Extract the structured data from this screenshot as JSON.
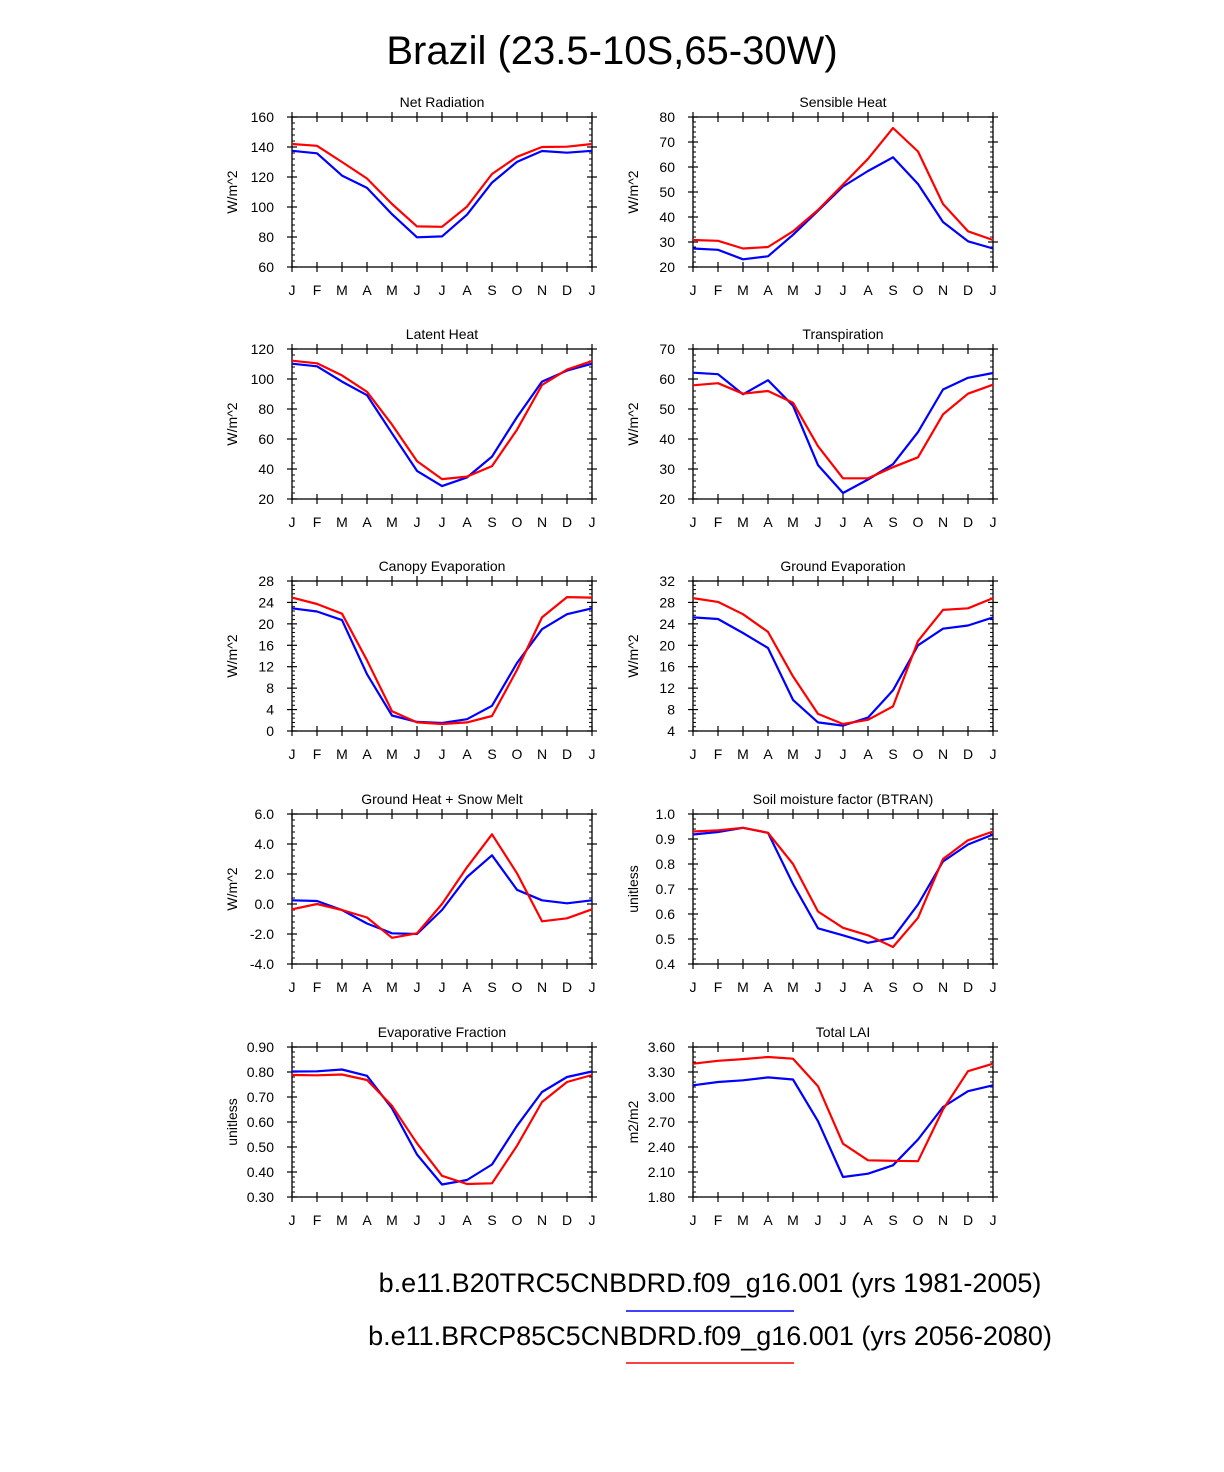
{
  "figure": {
    "title": "Brazil (23.5-10S,65-30W)",
    "colors": {
      "series1": "#0000ff",
      "series2": "#ff0000",
      "axis": "#000000"
    }
  },
  "legend": {
    "entries": [
      {
        "label": "b.e11.B20TRC5CNBDRD.f09_g16.001 (yrs 1981-2005)",
        "color": "#0000ff"
      },
      {
        "label": "b.e11.BRCP85C5CNBDRD.f09_g16.001 (yrs 2056-2080)",
        "color": "#ff0000"
      }
    ]
  },
  "chart_data": [
    {
      "type": "line",
      "title": "Net Radiation",
      "ylabel": "W/m^2",
      "xlabel": "",
      "categories": [
        "J",
        "F",
        "M",
        "A",
        "M",
        "J",
        "J",
        "A",
        "S",
        "O",
        "N",
        "D",
        "J"
      ],
      "ylim": [
        60,
        160
      ],
      "yticks": [
        "60",
        "80",
        "100",
        "120",
        "140",
        "160"
      ],
      "series": [
        {
          "name": "b.e11.B20TRC5CNBDRD.f09_g16.001 (yrs 1981-2005)",
          "color": "#0000ff",
          "values": [
            137.5,
            135.8,
            120.9,
            112.7,
            95.2,
            79.8,
            80.4,
            94.9,
            116.3,
            130.1,
            137.3,
            136.2,
            137.5
          ]
        },
        {
          "name": "b.e11.BRCP85C5CNBDRD.f09_g16.001 (yrs 2056-2080)",
          "color": "#ff0000",
          "values": [
            142.0,
            140.8,
            130.0,
            119.0,
            102.0,
            87.1,
            86.8,
            100.3,
            122.0,
            133.5,
            140.0,
            140.2,
            142.0
          ]
        }
      ]
    },
    {
      "type": "line",
      "title": "Sensible Heat",
      "ylabel": "W/m^2",
      "xlabel": "",
      "categories": [
        "J",
        "F",
        "M",
        "A",
        "M",
        "J",
        "J",
        "A",
        "S",
        "O",
        "N",
        "D",
        "J"
      ],
      "ylim": [
        20,
        80
      ],
      "yticks": [
        "20",
        "30",
        "40",
        "50",
        "60",
        "70",
        "80"
      ],
      "series": [
        {
          "name": "b.e11.B20TRC5CNBDRD.f09_g16.001 (yrs 1981-2005)",
          "color": "#0000ff",
          "values": [
            27.4,
            26.9,
            23.1,
            24.3,
            32.9,
            42.5,
            52.2,
            58.4,
            63.9,
            53.2,
            38.0,
            30.3,
            27.4
          ]
        },
        {
          "name": "b.e11.BRCP85C5CNBDRD.f09_g16.001 (yrs 2056-2080)",
          "color": "#ff0000",
          "values": [
            30.8,
            30.5,
            27.4,
            28.0,
            34.3,
            42.8,
            53.0,
            63.3,
            75.6,
            66.2,
            45.2,
            34.3,
            30.8
          ]
        }
      ]
    },
    {
      "type": "line",
      "title": "Latent Heat",
      "ylabel": "W/m^2",
      "xlabel": "",
      "categories": [
        "J",
        "F",
        "M",
        "A",
        "M",
        "J",
        "J",
        "A",
        "S",
        "O",
        "N",
        "D",
        "J"
      ],
      "ylim": [
        20,
        120
      ],
      "yticks": [
        "20",
        "40",
        "60",
        "80",
        "100",
        "120"
      ],
      "series": [
        {
          "name": "b.e11.B20TRC5CNBDRD.f09_g16.001 (yrs 1981-2005)",
          "color": "#0000ff",
          "values": [
            110.2,
            108.5,
            98.3,
            89.2,
            63.8,
            38.7,
            28.6,
            34.4,
            48.3,
            74.6,
            98.3,
            105.6,
            110.2
          ]
        },
        {
          "name": "b.e11.BRCP85C5CNBDRD.f09_g16.001 (yrs 2056-2080)",
          "color": "#ff0000",
          "values": [
            112.2,
            110.5,
            102.4,
            91.5,
            69.6,
            45.3,
            33.3,
            34.9,
            41.9,
            66.2,
            96.0,
            106.3,
            112.0
          ]
        }
      ]
    },
    {
      "type": "line",
      "title": "Transpiration",
      "ylabel": "W/m^2",
      "xlabel": "",
      "categories": [
        "J",
        "F",
        "M",
        "A",
        "M",
        "J",
        "J",
        "A",
        "S",
        "O",
        "N",
        "D",
        "J"
      ],
      "ylim": [
        20,
        70
      ],
      "yticks": [
        "20",
        "30",
        "40",
        "50",
        "60",
        "70"
      ],
      "series": [
        {
          "name": "b.e11.B20TRC5CNBDRD.f09_g16.001 (yrs 1981-2005)",
          "color": "#0000ff",
          "values": [
            62.1,
            61.6,
            54.9,
            59.6,
            51.1,
            31.3,
            22.0,
            26.5,
            31.6,
            42.3,
            56.5,
            60.4,
            62.0
          ]
        },
        {
          "name": "b.e11.BRCP85C5CNBDRD.f09_g16.001 (yrs 2056-2080)",
          "color": "#ff0000",
          "values": [
            57.9,
            58.6,
            55.1,
            56.0,
            52.1,
            37.6,
            26.9,
            26.9,
            30.6,
            33.9,
            48.2,
            55.1,
            58.1
          ]
        }
      ]
    },
    {
      "type": "line",
      "title": "Canopy Evaporation",
      "ylabel": "W/m^2",
      "xlabel": "",
      "categories": [
        "J",
        "F",
        "M",
        "A",
        "M",
        "J",
        "J",
        "A",
        "S",
        "O",
        "N",
        "D",
        "J"
      ],
      "ylim": [
        0,
        28
      ],
      "yticks": [
        "0",
        "4",
        "8",
        "12",
        "16",
        "20",
        "24",
        "28"
      ],
      "series": [
        {
          "name": "b.e11.B20TRC5CNBDRD.f09_g16.001 (yrs 1981-2005)",
          "color": "#0000ff",
          "values": [
            22.9,
            22.3,
            20.7,
            10.6,
            2.9,
            1.7,
            1.5,
            2.2,
            4.7,
            12.7,
            19.0,
            21.8,
            22.9
          ]
        },
        {
          "name": "b.e11.BRCP85C5CNBDRD.f09_g16.001 (yrs 2056-2080)",
          "color": "#ff0000",
          "values": [
            24.9,
            23.7,
            21.9,
            13.2,
            3.7,
            1.6,
            1.3,
            1.6,
            2.8,
            11.4,
            21.2,
            25.0,
            24.9
          ]
        }
      ]
    },
    {
      "type": "line",
      "title": "Ground Evaporation",
      "ylabel": "W/m^2",
      "xlabel": "",
      "categories": [
        "J",
        "F",
        "M",
        "A",
        "M",
        "J",
        "J",
        "A",
        "S",
        "O",
        "N",
        "D",
        "J"
      ],
      "ylim": [
        4,
        32
      ],
      "yticks": [
        "4",
        "8",
        "12",
        "16",
        "20",
        "24",
        "28",
        "32"
      ],
      "series": [
        {
          "name": "b.e11.B20TRC5CNBDRD.f09_g16.001 (yrs 1981-2005)",
          "color": "#0000ff",
          "values": [
            25.2,
            24.9,
            22.3,
            19.5,
            9.8,
            5.6,
            5.0,
            6.5,
            11.6,
            20.0,
            23.1,
            23.7,
            25.2
          ]
        },
        {
          "name": "b.e11.BRCP85C5CNBDRD.f09_g16.001 (yrs 2056-2080)",
          "color": "#ff0000",
          "values": [
            28.8,
            28.1,
            25.8,
            22.5,
            14.2,
            7.2,
            5.3,
            6.1,
            8.6,
            20.8,
            26.6,
            26.9,
            28.8
          ]
        }
      ]
    },
    {
      "type": "line",
      "title": "Ground Heat + Snow Melt",
      "ylabel": "W/m^2",
      "xlabel": "",
      "categories": [
        "J",
        "F",
        "M",
        "A",
        "M",
        "J",
        "J",
        "A",
        "S",
        "O",
        "N",
        "D",
        "J"
      ],
      "ylim": [
        -4,
        6
      ],
      "yticks": [
        "-4.0",
        "-2.0",
        "0.0",
        "2.0",
        "4.0",
        "6.0"
      ],
      "series": [
        {
          "name": "b.e11.B20TRC5CNBDRD.f09_g16.001 (yrs 1981-2005)",
          "color": "#0000ff",
          "values": [
            0.25,
            0.2,
            -0.4,
            -1.3,
            -1.95,
            -2.0,
            -0.4,
            1.8,
            3.25,
            0.95,
            0.25,
            0.05,
            0.25
          ]
        },
        {
          "name": "b.e11.BRCP85C5CNBDRD.f09_g16.001 (yrs 2056-2080)",
          "color": "#ff0000",
          "values": [
            -0.35,
            0.0,
            -0.4,
            -0.9,
            -2.25,
            -1.95,
            0.0,
            2.45,
            4.65,
            2.05,
            -1.15,
            -0.95,
            -0.35
          ]
        }
      ]
    },
    {
      "type": "line",
      "title": "Soil moisture factor (BTRAN)",
      "ylabel": "unitless",
      "xlabel": "",
      "categories": [
        "J",
        "F",
        "M",
        "A",
        "M",
        "J",
        "J",
        "A",
        "S",
        "O",
        "N",
        "D",
        "J"
      ],
      "ylim": [
        0.4,
        1.0
      ],
      "yticks": [
        "0.4",
        "0.5",
        "0.6",
        "0.7",
        "0.8",
        "0.9",
        "1.0"
      ],
      "series": [
        {
          "name": "b.e11.B20TRC5CNBDRD.f09_g16.001 (yrs 1981-2005)",
          "color": "#0000ff",
          "values": [
            0.918,
            0.928,
            0.945,
            0.925,
            0.72,
            0.543,
            0.515,
            0.485,
            0.505,
            0.638,
            0.81,
            0.878,
            0.918
          ]
        },
        {
          "name": "b.e11.BRCP85C5CNBDRD.f09_g16.001 (yrs 2056-2080)",
          "color": "#ff0000",
          "values": [
            0.93,
            0.935,
            0.945,
            0.925,
            0.8,
            0.61,
            0.545,
            0.515,
            0.468,
            0.585,
            0.82,
            0.895,
            0.93
          ]
        }
      ]
    },
    {
      "type": "line",
      "title": "Evaporative Fraction",
      "ylabel": "unitless",
      "xlabel": "",
      "categories": [
        "J",
        "F",
        "M",
        "A",
        "M",
        "J",
        "J",
        "A",
        "S",
        "O",
        "N",
        "D",
        "J"
      ],
      "ylim": [
        0.3,
        0.9
      ],
      "yticks": [
        "0.30",
        "0.40",
        "0.50",
        "0.60",
        "0.70",
        "0.80",
        "0.90"
      ],
      "series": [
        {
          "name": "b.e11.B20TRC5CNBDRD.f09_g16.001 (yrs 1981-2005)",
          "color": "#0000ff",
          "values": [
            0.802,
            0.803,
            0.81,
            0.785,
            0.655,
            0.47,
            0.35,
            0.368,
            0.43,
            0.585,
            0.72,
            0.78,
            0.802
          ]
        },
        {
          "name": "b.e11.BRCP85C5CNBDRD.f09_g16.001 (yrs 2056-2080)",
          "color": "#ff0000",
          "values": [
            0.788,
            0.787,
            0.79,
            0.768,
            0.665,
            0.515,
            0.385,
            0.352,
            0.355,
            0.505,
            0.68,
            0.76,
            0.788
          ]
        }
      ]
    },
    {
      "type": "line",
      "title": "Total LAI",
      "ylabel": "m2/m2",
      "xlabel": "",
      "categories": [
        "J",
        "F",
        "M",
        "A",
        "M",
        "J",
        "J",
        "A",
        "S",
        "O",
        "N",
        "D",
        "J"
      ],
      "ylim": [
        1.8,
        3.6
      ],
      "yticks": [
        "1.80",
        "2.10",
        "2.40",
        "2.70",
        "3.00",
        "3.30",
        "3.60"
      ],
      "series": [
        {
          "name": "b.e11.B20TRC5CNBDRD.f09_g16.001 (yrs 1981-2005)",
          "color": "#0000ff",
          "values": [
            3.14,
            3.18,
            3.2,
            3.235,
            3.21,
            2.71,
            2.04,
            2.08,
            2.18,
            2.49,
            2.88,
            3.07,
            3.14
          ]
        },
        {
          "name": "b.e11.BRCP85C5CNBDRD.f09_g16.001 (yrs 2056-2080)",
          "color": "#ff0000",
          "values": [
            3.4,
            3.435,
            3.455,
            3.48,
            3.46,
            3.13,
            2.44,
            2.24,
            2.235,
            2.23,
            2.85,
            3.31,
            3.4
          ]
        }
      ]
    }
  ]
}
